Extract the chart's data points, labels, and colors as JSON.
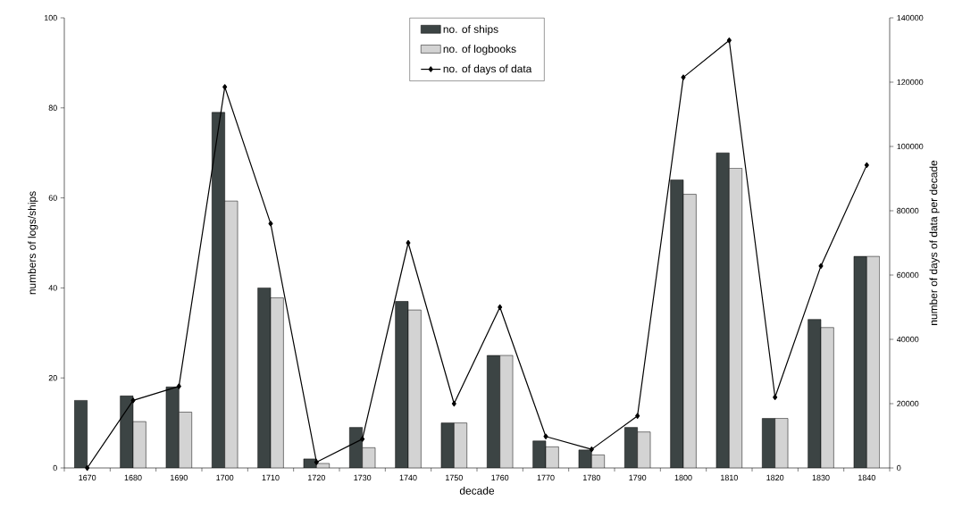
{
  "chart_data": {
    "type": "bar",
    "xlabel": "decade",
    "ylabel": "numbers of logs/ships",
    "y2label": "number of days of data per decade",
    "categories": [
      "1670",
      "1680",
      "1690",
      "1700",
      "1710",
      "1720",
      "1730",
      "1740",
      "1750",
      "1760",
      "1770",
      "1780",
      "1790",
      "1800",
      "1810",
      "1820",
      "1830",
      "1840"
    ],
    "series": [
      {
        "name": "no. of ships",
        "color": "#3c4444",
        "values": [
          15,
          16,
          18,
          79,
          40,
          2,
          9,
          37,
          10,
          25,
          6,
          4,
          9,
          64,
          70,
          11,
          33,
          47
        ]
      },
      {
        "name": "no. of logbooks",
        "color": "#d3d3d3",
        "values": [
          null,
          10.3,
          12.4,
          59.3,
          37.8,
          1,
          4.5,
          35.1,
          10,
          25,
          4.7,
          2.9,
          8,
          60.8,
          66.6,
          11,
          31.2,
          47
        ]
      },
      {
        "name": "no. of days of data",
        "color": "#000000",
        "type": "line",
        "axis": "y2",
        "marker": "diamond",
        "values": [
          0,
          21000,
          25400,
          118500,
          76000,
          1800,
          9000,
          70000,
          20000,
          50000,
          9800,
          5800,
          16200,
          121500,
          133000,
          22000,
          62800,
          94200
        ]
      }
    ],
    "ylim": [
      0,
      100
    ],
    "yticks": [
      0,
      20,
      40,
      60,
      80,
      100
    ],
    "y2lim": [
      0,
      140000
    ],
    "y2ticks": [
      0,
      20000,
      40000,
      60000,
      80000,
      100000,
      120000,
      140000
    ],
    "legend": "top"
  }
}
